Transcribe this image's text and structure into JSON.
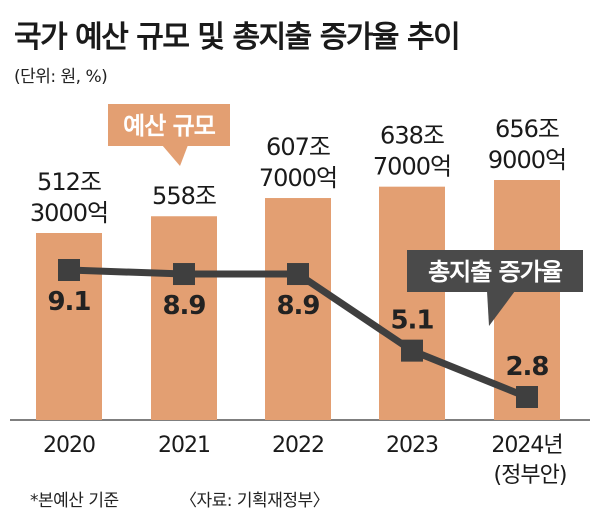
{
  "title": "국가 예산 규모 및 총지출 증가율 추이",
  "unit_note": "(단위: 원, %)",
  "footnote": "*본예산 기준",
  "source": "〈자료: 기획재정부〉",
  "colors": {
    "bar": "#E39F72",
    "line": "#3F3F3F",
    "label_box_orange": "#E39F72",
    "label_box_dark": "#4A4A4A",
    "text": "#1a1a1a"
  },
  "chart_data": {
    "type": "bar",
    "categories": [
      "2020",
      "2021",
      "2022",
      "2023",
      "2024년"
    ],
    "category_sub": [
      "",
      "",
      "",
      "",
      "(정부안)"
    ],
    "series": [
      {
        "name": "예산 규모",
        "type": "bar",
        "values": [
          512.3,
          558.0,
          607.7,
          638.7,
          656.9
        ],
        "labels": [
          [
            "512조",
            "3000억"
          ],
          [
            "558조"
          ],
          [
            "607조",
            "7000억"
          ],
          [
            "638조",
            "7000억"
          ],
          [
            "656조",
            "9000억"
          ]
        ]
      },
      {
        "name": "총지출 증가율",
        "type": "line",
        "values": [
          9.1,
          8.9,
          8.9,
          5.1,
          2.8
        ],
        "labels": [
          "9.1",
          "8.9",
          "8.9",
          "5.1",
          "2.8"
        ]
      }
    ]
  }
}
